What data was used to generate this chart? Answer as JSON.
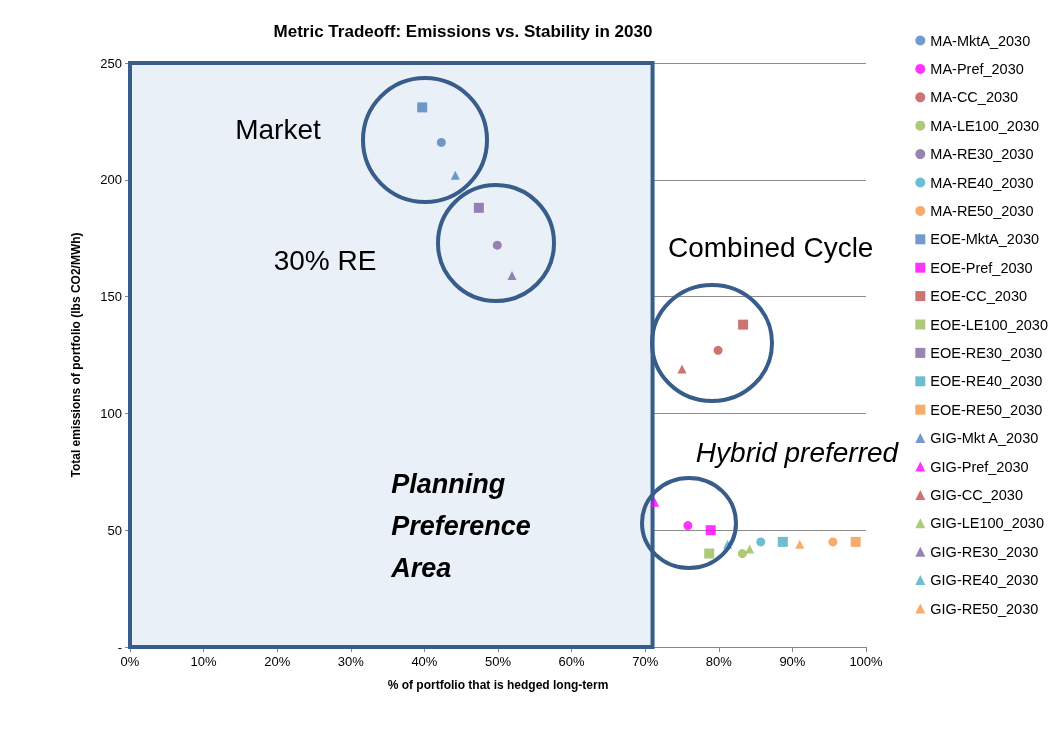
{
  "chart_data": {
    "type": "scatter",
    "title": "Metric Tradeoff: Emissions vs. Stability in 2030",
    "xlabel": "% of portfolio that is hedged long-term",
    "ylabel": "Total emissions of portfolio (lbs CO2/MWh)",
    "xlim": [
      0,
      100
    ],
    "xticks": [
      {
        "value": 0,
        "label": "0%"
      },
      {
        "value": 10,
        "label": "10%"
      },
      {
        "value": 20,
        "label": "20%"
      },
      {
        "value": 30,
        "label": "30%"
      },
      {
        "value": 40,
        "label": "40%"
      },
      {
        "value": 50,
        "label": "50%"
      },
      {
        "value": 60,
        "label": "60%"
      },
      {
        "value": 70,
        "label": "70%"
      },
      {
        "value": 80,
        "label": "80%"
      },
      {
        "value": 90,
        "label": "90%"
      },
      {
        "value": 100,
        "label": "100%"
      }
    ],
    "ylim": [
      0,
      250
    ],
    "yticks": [
      {
        "value": 0,
        "label": "-"
      },
      50,
      100,
      150,
      200,
      250
    ],
    "grid": "y",
    "legend": "right",
    "series": [
      {
        "name": "MA-MktA_2030",
        "color": "#4f81bd",
        "marker": "circle",
        "x": [
          42.3
        ],
        "values": [
          216
        ]
      },
      {
        "name": "MA-Pref_2030",
        "color": "#ff00ff",
        "marker": "circle",
        "x": [
          75.8
        ],
        "values": [
          52
        ]
      },
      {
        "name": "MA-CC_2030",
        "color": "#c0504d",
        "marker": "circle",
        "x": [
          79.9
        ],
        "values": [
          127
        ]
      },
      {
        "name": "MA-LE100_2030",
        "color": "#9bbb59",
        "marker": "circle",
        "x": [
          83.2
        ],
        "values": [
          40
        ]
      },
      {
        "name": "MA-RE30_2030",
        "color": "#8064a2",
        "marker": "circle",
        "x": [
          49.9
        ],
        "values": [
          172
        ]
      },
      {
        "name": "MA-RE40_2030",
        "color": "#4bacc6",
        "marker": "circle",
        "x": [
          85.7
        ],
        "values": [
          45
        ]
      },
      {
        "name": "MA-RE50_2030",
        "color": "#f79646",
        "marker": "circle",
        "x": [
          95.5
        ],
        "values": [
          45
        ]
      },
      {
        "name": "EOE-MktA_2030",
        "color": "#4f81bd",
        "marker": "square",
        "x": [
          39.7
        ],
        "values": [
          231
        ]
      },
      {
        "name": "EOE-Pref_2030",
        "color": "#ff00ff",
        "marker": "square",
        "x": [
          78.9
        ],
        "values": [
          50
        ]
      },
      {
        "name": "EOE-CC_2030",
        "color": "#c0504d",
        "marker": "square",
        "x": [
          83.3
        ],
        "values": [
          138
        ]
      },
      {
        "name": "EOE-LE100_2030",
        "color": "#9bbb59",
        "marker": "square",
        "x": [
          78.7
        ],
        "values": [
          40
        ]
      },
      {
        "name": "EOE-RE30_2030",
        "color": "#8064a2",
        "marker": "square",
        "x": [
          47.4
        ],
        "values": [
          188
        ]
      },
      {
        "name": "EOE-RE40_2030",
        "color": "#4bacc6",
        "marker": "square",
        "x": [
          88.7
        ],
        "values": [
          45
        ]
      },
      {
        "name": "EOE-RE50_2030",
        "color": "#f79646",
        "marker": "square",
        "x": [
          98.6
        ],
        "values": [
          45
        ]
      },
      {
        "name": "GIG-Mkt A_2030",
        "color": "#4f81bd",
        "marker": "triangle",
        "x": [
          44.2
        ],
        "values": [
          202
        ]
      },
      {
        "name": "GIG-Pref_2030",
        "color": "#ff00ff",
        "marker": "triangle",
        "x": [
          71.3
        ],
        "values": [
          62
        ]
      },
      {
        "name": "GIG-CC_2030",
        "color": "#c0504d",
        "marker": "triangle",
        "x": [
          75.0
        ],
        "values": [
          119
        ]
      },
      {
        "name": "GIG-LE100_2030",
        "color": "#9bbb59",
        "marker": "triangle",
        "x": [
          84.2
        ],
        "values": [
          42
        ]
      },
      {
        "name": "GIG-RE30_2030",
        "color": "#8064a2",
        "marker": "triangle",
        "x": [
          51.9
        ],
        "values": [
          159
        ]
      },
      {
        "name": "GIG-RE40_2030",
        "color": "#4bacc6",
        "marker": "triangle",
        "x": [
          81.2
        ],
        "values": [
          44
        ]
      },
      {
        "name": "GIG-RE50_2030",
        "color": "#f79646",
        "marker": "triangle",
        "x": [
          91.0
        ],
        "values": [
          44
        ]
      }
    ],
    "bands": [
      {
        "axis": "x",
        "from": 0,
        "to": 71,
        "label": "Planning Preference Area",
        "color": "#eaf0f8"
      }
    ],
    "annotations": [
      "Market",
      "30% RE",
      "Combined Cycle",
      "Hybrid preferred"
    ]
  }
}
